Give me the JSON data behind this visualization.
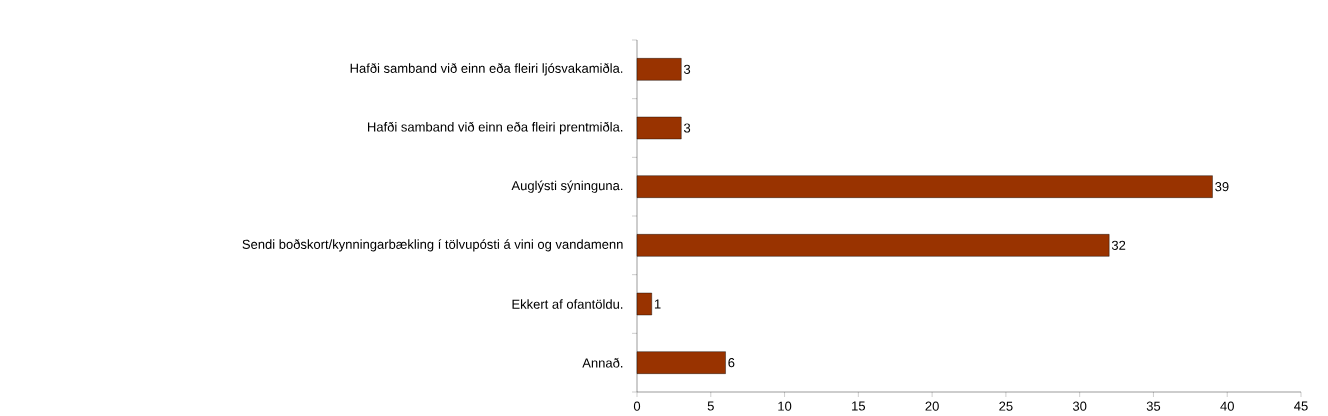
{
  "chart_data": {
    "type": "bar",
    "orientation": "horizontal",
    "categories": [
      "Hafði samband við einn eða fleiri ljósvakamiðla.",
      "Hafði samband við einn eða fleiri prentmiðla.",
      "Auglýsti sýninguna.",
      "Sendi boðskort/kynningarbækling í tölvupósti á vini og vandamenn",
      "Ekkert af ofantöldu.",
      "Annað."
    ],
    "values": [
      3,
      3,
      39,
      32,
      1,
      6
    ],
    "color": "#993300",
    "xlim": [
      0,
      45
    ],
    "xticks": [
      0,
      5,
      10,
      15,
      20,
      25,
      30,
      35,
      40,
      45
    ],
    "data_labels": true,
    "grid": false
  }
}
